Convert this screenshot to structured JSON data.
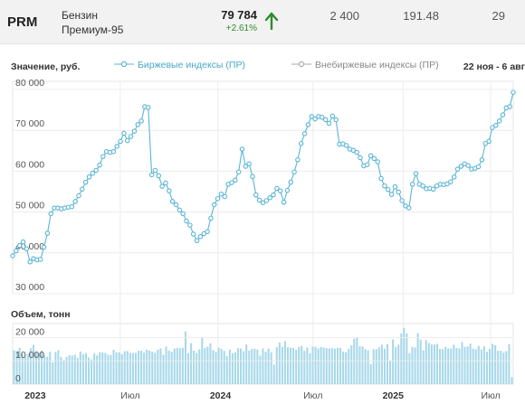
{
  "header": {
    "ticker": "PRM",
    "product_line1": "Бензин",
    "product_line2": "Премиум-95",
    "price": "79 784",
    "change": "+2.61%",
    "stat1": "2 400",
    "stat2": "191.48",
    "stat3": "29",
    "up_color": "#2d8c2d"
  },
  "legend": {
    "y_label": "Значение, руб.",
    "exchange_label": "Биржевые индексы (ПР)",
    "otc_label": "Внебиржевые индексы (ПР)",
    "range": "22 ноя - 6 авг"
  },
  "volume_label": "Объем, тонн",
  "chart_data": [
    {
      "type": "line",
      "series": [
        {
          "name": "Биржевые индексы (ПР)",
          "color": "#5bb5d5",
          "values": [
            39300,
            40500,
            41800,
            42700,
            41000,
            37800,
            38600,
            38300,
            38400,
            41400,
            44800,
            49600,
            51000,
            51000,
            50800,
            51000,
            51200,
            51300,
            52600,
            54000,
            55600,
            57300,
            58600,
            59500,
            60200,
            61500,
            63600,
            64800,
            64600,
            64800,
            66100,
            67300,
            69300,
            67500,
            68500,
            69800,
            71400,
            72300,
            75800,
            75600,
            59100,
            60200,
            58900,
            56300,
            57100,
            55200,
            52600,
            51800,
            50500,
            49600,
            47800,
            46800,
            44600,
            43000,
            44000,
            44700,
            45200,
            48500,
            51800,
            53300,
            54400,
            53800,
            56800,
            57200,
            57800,
            59800,
            65400,
            61200,
            61800,
            58700,
            54200,
            52900,
            52300,
            52800,
            53500,
            54200,
            55800,
            55200,
            52400,
            55300,
            57300,
            59800,
            62800,
            66800,
            69200,
            71400,
            73400,
            72800,
            73400,
            73200,
            72600,
            71700,
            73500,
            72600,
            66600,
            66700,
            66300,
            65400,
            65100,
            64600,
            63300,
            61300,
            61600,
            63800,
            63100,
            62300,
            58200,
            56400,
            55500,
            54300,
            56200,
            54900,
            52800,
            51500,
            51000,
            56800,
            59400,
            56800,
            56400,
            55700,
            55800,
            55600,
            56400,
            56800,
            56700,
            56900,
            57400,
            58600,
            60500,
            61200,
            61800,
            61400,
            60500,
            60700,
            61100,
            62800,
            66800,
            67300,
            70700,
            71200,
            72300,
            73800,
            75500,
            75800,
            79300
          ]
        }
      ],
      "y_ticks": [
        "80 000",
        "70 000",
        "60 000",
        "50 000",
        "40 000",
        "30 000"
      ],
      "ylim": [
        30000,
        82000
      ],
      "x_ticks": [
        "2023",
        "Июл",
        "2024",
        "Июл",
        "2025",
        "Июл"
      ],
      "grid": true
    },
    {
      "type": "bar",
      "title": "Объем, тонн",
      "color": "#a8d8ea",
      "y_ticks": [
        "20 000",
        "10 000",
        "0"
      ],
      "ylim": [
        0,
        26000
      ],
      "values": [
        14500,
        14200,
        15600,
        13200,
        11800,
        13000,
        15400,
        16800,
        13900,
        13400,
        14400,
        12200,
        11700,
        13900,
        9300,
        13800,
        14500,
        11700,
        10300,
        11600,
        12400,
        12200,
        12600,
        11200,
        14000,
        12800,
        13300,
        11400,
        10600,
        13100,
        12300,
        13700,
        13600,
        13400,
        12600,
        12500,
        14700,
        13600,
        13700,
        12900,
        14100,
        14200,
        13400,
        13400,
        13400,
        14300,
        14300,
        13600,
        14800,
        14400,
        13900,
        13500,
        14800,
        15300,
        12600,
        16100,
        14400,
        13800,
        15300,
        15600,
        15400,
        15600,
        22600,
        13300,
        17600,
        14400,
        13400,
        15000,
        20200,
        15500,
        16100,
        17500,
        14600,
        13800,
        15600,
        15100,
        14300,
        12000,
        14800,
        13200,
        13600,
        15400,
        15300,
        14100,
        17000,
        14400,
        15100,
        15200,
        14800,
        12200,
        15300,
        13900,
        15200,
        13700,
        8400,
        15800,
        17800,
        16000,
        18400,
        15800,
        15600,
        15500,
        14700,
        15900,
        16400,
        14300,
        15700,
        13200,
        16100,
        16000,
        15300,
        15900,
        15700,
        15400,
        15300,
        15500,
        15300,
        15600,
        15500,
        14000,
        13700,
        15100,
        16600,
        19500,
        20000,
        16200,
        16200,
        15000,
        14500,
        8600,
        15000,
        15000,
        15800,
        16900,
        15200,
        17100,
        10000,
        19200,
        16000,
        16900,
        21700,
        24200,
        21800,
        13300,
        16000,
        15700,
        21900,
        19100,
        14500,
        18900,
        17600,
        17000,
        17000,
        17300,
        15100,
        15000,
        16000,
        15300,
        15300,
        16900,
        15500,
        15300,
        18100,
        16000,
        16200,
        17400,
        15200,
        15000,
        16400,
        14900,
        16200,
        13900,
        15100,
        17300,
        16700,
        14300,
        14300,
        13500,
        14200,
        17200,
        3000
      ]
    }
  ]
}
